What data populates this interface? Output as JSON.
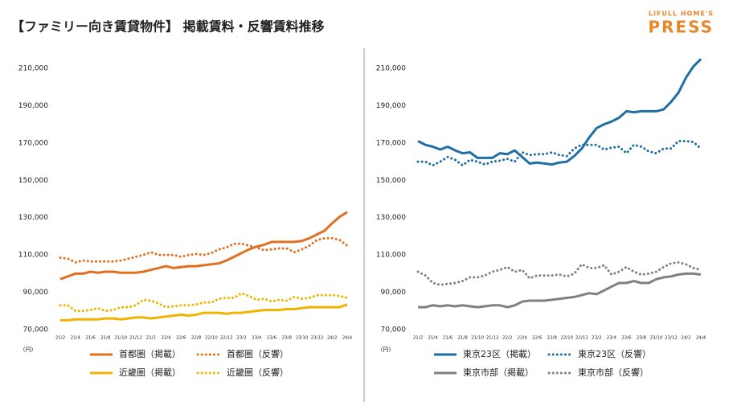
{
  "title": "【ファミリー向き賃貸物件】 掲載賃料・反響賃料推移",
  "logo": {
    "top": "LIFULL HOME'S",
    "main": "PRESS"
  },
  "chart_data": [
    {
      "type": "line",
      "y_unit": "(円)",
      "categories": [
        "21/2",
        null,
        "21/4",
        null,
        "21/6",
        null,
        "21/8",
        null,
        "21/10",
        null,
        "21/12",
        null,
        "22/2",
        null,
        "22/4",
        null,
        "22/6",
        null,
        "22/8",
        null,
        "22/10",
        null,
        "22/12",
        null,
        "23/2",
        null,
        "23/4",
        null,
        "23/6",
        null,
        "23/8",
        null,
        "23/10",
        null,
        "23/12",
        null,
        "24/2",
        null,
        "24/4"
      ],
      "ylim": [
        70000,
        210000
      ],
      "yticks": [
        {
          "value": 70000,
          "label": "70,000"
        },
        {
          "value": 90000,
          "label": "90,000"
        },
        {
          "value": 110000,
          "label": "110,000"
        },
        {
          "value": 130000,
          "label": "130,000"
        },
        {
          "value": 150000,
          "label": "150,000"
        },
        {
          "value": 170000,
          "label": "170,000"
        },
        {
          "value": 190000,
          "label": "190,000"
        },
        {
          "value": 210000,
          "label": "210,000"
        }
      ],
      "series": [
        {
          "name": "首都圏（掲載）",
          "color": "#e07020",
          "style": "solid",
          "values": [
            97000,
            98500,
            100000,
            100000,
            101000,
            100500,
            101000,
            101000,
            100500,
            100500,
            100500,
            101000,
            102000,
            103000,
            104000,
            103000,
            103500,
            104000,
            104000,
            104500,
            105000,
            105500,
            107000,
            109000,
            111000,
            113000,
            114500,
            115500,
            117000,
            117000,
            117000,
            117000,
            117500,
            119000,
            121000,
            123000,
            127000,
            130500,
            133000
          ]
        },
        {
          "name": "首都圏（反響）",
          "color": "#e07020",
          "style": "dotted",
          "values": [
            108500,
            108000,
            106000,
            107000,
            106500,
            106500,
            106500,
            106500,
            107000,
            108000,
            109000,
            110000,
            111500,
            110000,
            110000,
            110000,
            109000,
            110000,
            110500,
            110000,
            111000,
            113000,
            114000,
            116000,
            116000,
            115000,
            114000,
            112500,
            113000,
            113500,
            113500,
            111500,
            113000,
            115000,
            118000,
            119000,
            119000,
            118000,
            115000
          ]
        },
        {
          "name": "近畿圏（掲載）",
          "color": "#f0b400",
          "style": "solid",
          "values": [
            75000,
            75000,
            75500,
            75500,
            75500,
            75500,
            76000,
            76000,
            75500,
            76000,
            76500,
            76500,
            76000,
            76500,
            77000,
            77500,
            78000,
            77500,
            78000,
            79000,
            79000,
            79000,
            78500,
            79000,
            79000,
            79500,
            80000,
            80500,
            80500,
            80500,
            81000,
            81000,
            81500,
            82000,
            82000,
            82000,
            82000,
            82000,
            83500
          ]
        },
        {
          "name": "近畿圏（反響）",
          "color": "#f0b400",
          "style": "dotted",
          "values": [
            83000,
            83000,
            80000,
            80000,
            80500,
            81500,
            80000,
            80500,
            82000,
            82000,
            83000,
            86000,
            85500,
            84000,
            82000,
            82500,
            83000,
            83000,
            83500,
            84500,
            84500,
            86500,
            87000,
            87000,
            89500,
            88000,
            86000,
            86500,
            85000,
            86000,
            85500,
            87500,
            86500,
            87000,
            88500,
            88500,
            88500,
            88000,
            87000
          ]
        }
      ]
    },
    {
      "type": "line",
      "y_unit": "(円)",
      "categories": [
        "21/2",
        null,
        "21/4",
        null,
        "21/6",
        null,
        "21/8",
        null,
        "21/10",
        null,
        "21/12",
        null,
        "22/2",
        null,
        "22/4",
        null,
        "22/6",
        null,
        "22/8",
        null,
        "22/10",
        null,
        "22/12",
        null,
        "23/2",
        null,
        "23/4",
        null,
        "23/6",
        null,
        "23/8",
        null,
        "23/10",
        null,
        "23/12",
        null,
        "24/2",
        null,
        "24/4"
      ],
      "ylim": [
        70000,
        210000
      ],
      "yticks": [
        {
          "value": 70000,
          "label": "70,000"
        },
        {
          "value": 90000,
          "label": "90,000"
        },
        {
          "value": 110000,
          "label": "110,000"
        },
        {
          "value": 130000,
          "label": "130,000"
        },
        {
          "value": 150000,
          "label": "150,000"
        },
        {
          "value": 170000,
          "label": "170,000"
        },
        {
          "value": 190000,
          "label": "190,000"
        },
        {
          "value": 210000,
          "label": "210,000"
        }
      ],
      "series": [
        {
          "name": "東京23区（掲載）",
          "color": "#1f6fa5",
          "style": "solid",
          "values": [
            171000,
            169000,
            168000,
            166500,
            168000,
            166000,
            164500,
            165000,
            162000,
            162000,
            162000,
            164500,
            164000,
            166000,
            162500,
            159000,
            159500,
            159000,
            158500,
            159500,
            160000,
            163000,
            167000,
            173000,
            178000,
            180000,
            181500,
            183500,
            187000,
            186500,
            187000,
            187000,
            187000,
            188000,
            192000,
            197000,
            205000,
            211000,
            215000
          ]
        },
        {
          "name": "東京23区（反響）",
          "color": "#1f6fa5",
          "style": "dotted",
          "values": [
            160000,
            160000,
            158000,
            160000,
            162500,
            161000,
            158000,
            161000,
            160000,
            158500,
            160000,
            160500,
            161500,
            160000,
            165000,
            163500,
            164000,
            164000,
            165000,
            163500,
            163000,
            167000,
            169000,
            169000,
            169000,
            166500,
            167500,
            168000,
            164500,
            169000,
            168000,
            165500,
            164500,
            167000,
            167000,
            171000,
            171000,
            170500,
            167000
          ]
        },
        {
          "name": "東京市部（掲載）",
          "color": "#808080",
          "style": "solid",
          "values": [
            82000,
            82000,
            83000,
            82500,
            83000,
            82500,
            83000,
            82500,
            82000,
            82500,
            83000,
            83000,
            82000,
            83000,
            85000,
            85500,
            85500,
            85500,
            86000,
            86500,
            87000,
            87500,
            88500,
            89500,
            89000,
            91000,
            93000,
            95000,
            95000,
            96000,
            95000,
            95000,
            97000,
            98000,
            98500,
            99500,
            100000,
            100000,
            99500
          ]
        },
        {
          "name": "東京市部（反響）",
          "color": "#808080",
          "style": "dotted",
          "values": [
            101000,
            99000,
            95000,
            94000,
            94500,
            95000,
            96000,
            98000,
            98000,
            99000,
            101000,
            102000,
            103500,
            101000,
            102000,
            97500,
            99000,
            99000,
            99000,
            99500,
            98500,
            100000,
            105000,
            103000,
            103000,
            104500,
            99500,
            101000,
            103500,
            101000,
            99500,
            100000,
            101000,
            103500,
            105500,
            106000,
            105000,
            103000,
            102000
          ]
        }
      ]
    }
  ]
}
